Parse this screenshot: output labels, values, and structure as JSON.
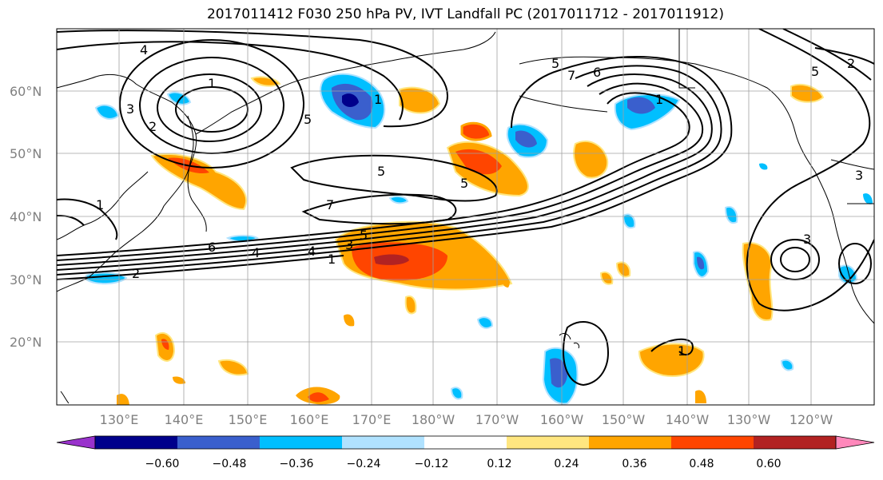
{
  "title": "2017011412 F030 250 hPa PV, IVT Landfall PC (2017011712 - 2017011912)",
  "map": {
    "lon_range_deg_east": [
      120,
      245
    ],
    "lat_range": [
      10,
      70
    ],
    "projection": "equirectangular",
    "grid": true
  },
  "x_ticks": [
    "130°E",
    "140°E",
    "150°E",
    "160°E",
    "170°E",
    "180°W",
    "170°W",
    "160°W",
    "150°W",
    "140°W",
    "130°W",
    "120°W"
  ],
  "y_ticks": [
    "60°N",
    "50°N",
    "40°N",
    "30°N",
    "20°N"
  ],
  "contour_labels": [
    "4",
    "1",
    "3",
    "5",
    "2",
    "1",
    "5",
    "5",
    "7",
    "7",
    "6",
    "5",
    "4",
    "1",
    "3",
    "5",
    "6",
    "4",
    "2",
    "1",
    "5",
    "3",
    "2",
    "1",
    "3",
    "1"
  ],
  "colorbar": {
    "ticks": [
      "−0.60",
      "−0.48",
      "−0.36",
      "−0.24",
      "−0.12",
      "0.12",
      "0.24",
      "0.36",
      "0.48",
      "0.60"
    ],
    "colors": [
      "#9932cc",
      "#00008b",
      "#3a5fcd",
      "#00bfff",
      "#b0e2ff",
      "#ffffff",
      "#ffe680",
      "#ffa500",
      "#ff4500",
      "#b22222",
      "#ff88bb"
    ],
    "extend": "both"
  },
  "fill_colors": {
    "land": "#ffffff",
    "ocean": "#ffffff",
    "coast": "#000000"
  }
}
